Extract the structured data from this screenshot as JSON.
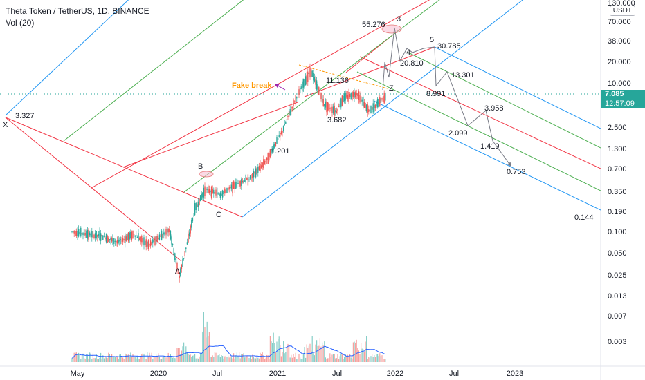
{
  "header": {
    "title": "Theta Token / TetherUS, 1D, BINANCE",
    "volume_label": "Vol (20)",
    "unit": "USDT"
  },
  "last_price": {
    "value": "7.085",
    "countdown": "12:57:09",
    "color": "#26a69a"
  },
  "colors": {
    "up": "#26a69a",
    "down": "#ef5350",
    "volume_ma": "#2962ff",
    "pitchfork_red": "#f23645",
    "pitchfork_green": "#4caf50",
    "pitchfork_blue": "#2196f3",
    "projection": "#787b86",
    "fake_break": "#ff9800",
    "arrow": "#9c27b0"
  },
  "chart_data": {
    "type": "candlestick",
    "title": "Theta Token / TetherUS, 1D, BINANCE",
    "y_scale": "log",
    "y_ticks": [
      "130.000",
      "70.000",
      "38.000",
      "20.000",
      "10.000",
      "5.000",
      "2.500",
      "1.300",
      "0.700",
      "0.350",
      "0.190",
      "0.100",
      "0.050",
      "0.025",
      "0.013",
      "0.007",
      "0.003"
    ],
    "x_ticks": [
      "May",
      "2020",
      "Jul",
      "2021",
      "Jul",
      "2022",
      "Jul",
      "2023"
    ],
    "price_path": [
      [
        "2019-05-01",
        0.16
      ],
      [
        "2019-06-15",
        0.15
      ],
      [
        "2019-08-01",
        0.14
      ],
      [
        "2019-09-15",
        0.12
      ],
      [
        "2019-11-01",
        0.15
      ],
      [
        "2019-12-15",
        0.11
      ],
      [
        "2020-02-15",
        0.17
      ],
      [
        "2020-03-15",
        0.045
      ],
      [
        "2020-05-01",
        0.3
      ],
      [
        "2020-06-01",
        0.52
      ],
      [
        "2020-07-15",
        0.45
      ],
      [
        "2020-09-01",
        0.6
      ],
      [
        "2020-10-15",
        0.72
      ],
      [
        "2020-12-01",
        1.2
      ],
      [
        "2021-01-15",
        2.6
      ],
      [
        "2021-02-20",
        6.0
      ],
      [
        "2021-04-10",
        14.0
      ],
      [
        "2021-05-20",
        5.5
      ],
      [
        "2021-06-25",
        4.5
      ],
      [
        "2021-07-15",
        6.5
      ],
      [
        "2021-08-25",
        7.5
      ],
      [
        "2021-10-01",
        4.5
      ],
      [
        "2021-11-20",
        7.085
      ]
    ],
    "projection_path": [
      [
        "2021-11-25",
        6.5
      ],
      [
        "2021-12-05",
        16
      ],
      [
        "2021-12-12",
        9
      ],
      [
        "2021-12-20",
        55.276
      ],
      [
        "2021-12-28",
        20.81
      ],
      [
        "2022-01-25",
        30
      ],
      [
        "2022-02-15",
        18
      ],
      [
        "2022-03-10",
        30.785
      ],
      [
        "2022-03-28",
        8.991
      ],
      [
        "2022-04-25",
        13.301
      ],
      [
        "2022-06-01",
        2.099
      ],
      [
        "2022-07-05",
        3.958
      ],
      [
        "2022-07-25",
        1.419
      ],
      [
        "2022-08-10",
        0.753
      ]
    ],
    "point_labels": [
      {
        "text": "3.327",
        "role": "X"
      },
      {
        "text": "55.276",
        "role": "3"
      },
      {
        "text": "30.785",
        "role": "5"
      },
      {
        "text": "20.810",
        "role": "4"
      },
      {
        "text": "13.301"
      },
      {
        "text": "11.136"
      },
      {
        "text": "8.991"
      },
      {
        "text": "3.682"
      },
      {
        "text": "3.958"
      },
      {
        "text": "2.099"
      },
      {
        "text": "1.419"
      },
      {
        "text": "1.201"
      },
      {
        "text": "0.753"
      },
      {
        "text": "0.144"
      }
    ],
    "wave_labels": [
      "X",
      "A",
      "B",
      "C",
      "3",
      "4",
      "5",
      "Z"
    ],
    "annotation": "Fake break",
    "volume_series": "Vol (20)"
  }
}
